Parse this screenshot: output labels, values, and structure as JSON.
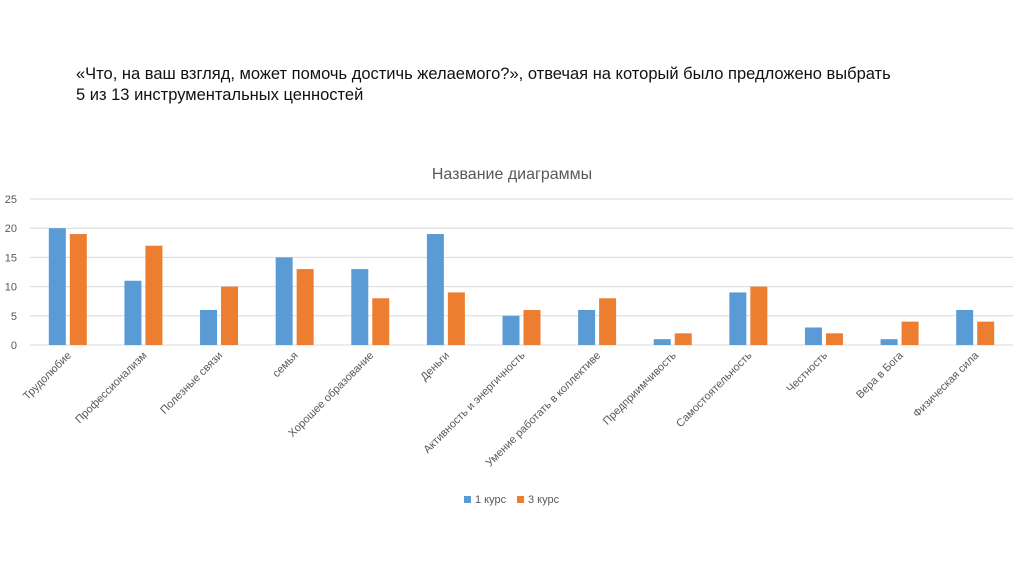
{
  "slide": {
    "heading_line1": "«Что, на ваш взгляд, может помочь достичь желаемого?», отвечая на который было предложено выбрать",
    "heading_line2": "5 из 13 инструментальных ценностей"
  },
  "chart_data": {
    "type": "bar",
    "title": "Название диаграммы",
    "categories": [
      "Трудолюбие",
      "Профессионализм",
      "Полезные связи",
      "семья",
      "Хорошее образование",
      "Деньги",
      "Активность и энергичность",
      "Умение работать в коллективе",
      "Предприимчивость",
      "Самостоятельность",
      "Честность",
      "Вера в Бога",
      "Физическая сила"
    ],
    "series": [
      {
        "name": "1 курс",
        "color": "#5B9BD5",
        "values": [
          20,
          11,
          6,
          15,
          13,
          19,
          5,
          6,
          1,
          9,
          3,
          1,
          6
        ]
      },
      {
        "name": "3 курс",
        "color": "#ED7D31",
        "values": [
          19,
          17,
          10,
          13,
          8,
          9,
          6,
          8,
          2,
          10,
          2,
          4,
          4
        ]
      }
    ],
    "ylim": [
      0,
      25
    ],
    "yticks": [
      0,
      5,
      10,
      15,
      20,
      25
    ],
    "grid": true,
    "legend": "bottom",
    "xlabel": "",
    "ylabel": ""
  }
}
